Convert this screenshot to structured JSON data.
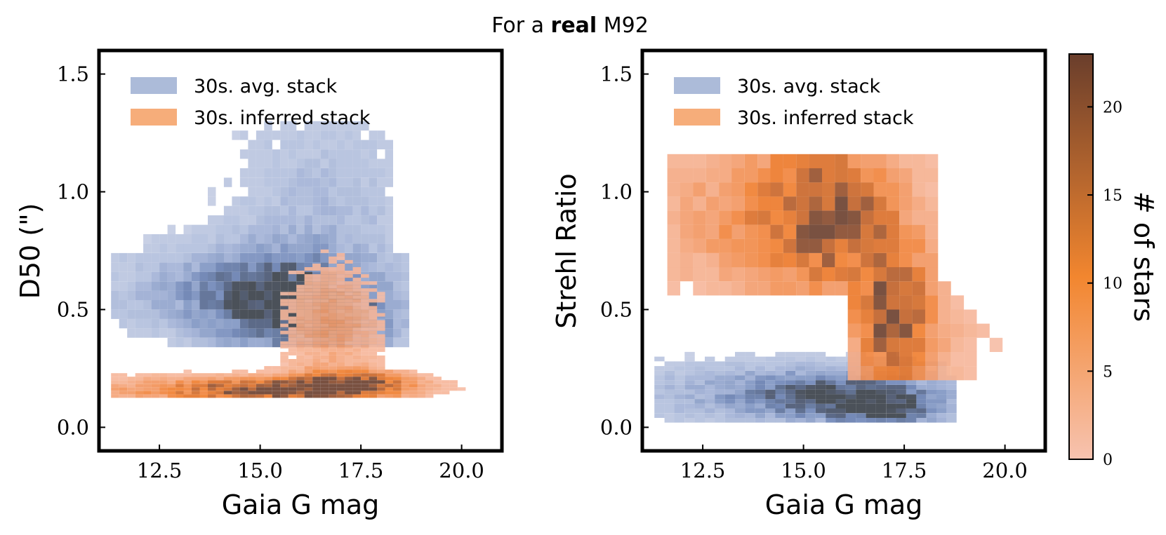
{
  "figure": {
    "title_prefix": "For a ",
    "title_bold": "real",
    "title_suffix": " M92"
  },
  "colors": {
    "avg_stack": "#5a78b4",
    "inferred_stack": "#f07a28",
    "colorbar_low": "#f7c3b0",
    "colorbar_mid": "#f2862f",
    "colorbar_high": "#6a3e2c"
  },
  "chart_data": [
    {
      "type": "heatmap",
      "panel": "left",
      "xlabel": "Gaia G mag",
      "ylabel": "D50 (\")",
      "xlim": [
        11.0,
        21.0
      ],
      "ylim": [
        -0.1,
        1.6
      ],
      "xticks": [
        "12.5",
        "15.0",
        "17.5",
        "20.0"
      ],
      "yticks": [
        "0.0",
        "0.5",
        "1.0",
        "1.5"
      ],
      "legend_position": "upper-left",
      "series": [
        {
          "name": "30s. avg. stack",
          "bin_width_mag": 0.2,
          "bin_height": 0.04,
          "description": "2D histogram of star counts",
          "regions": [
            {
              "x_center": 15.3,
              "y_center": 0.53,
              "peak_count": 20
            },
            {
              "x_center": 16.9,
              "y_center": 0.45,
              "peak_count": 16
            },
            {
              "x_range": [
                11.3,
                18.7
              ],
              "y_range": [
                0.35,
                0.75
              ]
            },
            {
              "x_range": [
                12.0,
                18.2
              ],
              "y_range": [
                0.75,
                1.3
              ]
            }
          ]
        },
        {
          "name": "30s. inferred stack",
          "bin_width_mag": 0.2,
          "bin_height": 0.015,
          "description": "2D histogram of star counts",
          "regions": [
            {
              "x_center": 15.5,
              "y_center": 0.16,
              "peak_count": 22
            },
            {
              "x_center": 17.3,
              "y_center": 0.19,
              "peak_count": 22
            },
            {
              "x_range": [
                11.3,
                20.0
              ],
              "y_range": [
                0.12,
                0.25
              ]
            },
            {
              "x_range": [
                15.0,
                18.0
              ],
              "y_range": [
                0.25,
                0.85
              ]
            }
          ]
        }
      ]
    },
    {
      "type": "heatmap",
      "panel": "right",
      "xlabel": "Gaia G mag",
      "ylabel": "Strehl Ratio",
      "xlim": [
        11.0,
        21.0
      ],
      "ylim": [
        -0.1,
        1.6
      ],
      "xticks": [
        "12.5",
        "15.0",
        "17.5",
        "20.0"
      ],
      "yticks": [
        "0.0",
        "0.5",
        "1.0",
        "1.5"
      ],
      "legend_position": "upper-left",
      "series": [
        {
          "name": "30s. avg. stack",
          "bin_width_mag": 0.25,
          "bin_height": 0.02,
          "description": "2D histogram of star counts",
          "regions": [
            {
              "x_center": 15.8,
              "y_center": 0.13,
              "peak_count": 18
            },
            {
              "x_center": 17.1,
              "y_center": 0.08,
              "peak_count": 20
            },
            {
              "x_range": [
                11.3,
                18.8
              ],
              "y_range": [
                0.03,
                0.42
              ]
            }
          ]
        },
        {
          "name": "30s. inferred stack",
          "bin_width_mag": 0.32,
          "bin_height": 0.06,
          "description": "2D histogram of star counts",
          "regions": [
            {
              "x_center": 15.7,
              "y_center": 0.9,
              "peak_count": 18
            },
            {
              "x_center": 17.3,
              "y_center": 0.5,
              "peak_count": 22
            },
            {
              "x_range": [
                11.6,
                18.2
              ],
              "y_range": [
                0.55,
                1.15
              ]
            },
            {
              "x_range": [
                16.0,
                19.8
              ],
              "y_range": [
                0.2,
                0.6
              ]
            }
          ]
        }
      ]
    }
  ],
  "colorbar": {
    "label": "# of stars",
    "range": [
      0,
      23
    ],
    "ticks": [
      "0",
      "5",
      "10",
      "15",
      "20"
    ]
  }
}
